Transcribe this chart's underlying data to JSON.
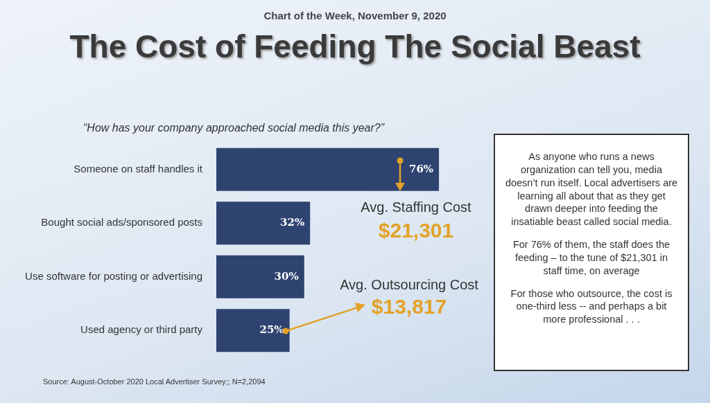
{
  "chart_data": {
    "type": "bar",
    "orientation": "horizontal",
    "title": "The Cost of Feeding The Social Beast",
    "subtitle": "Chart of the Week, November 9, 2020",
    "categories": [
      "Someone on staff handles it",
      "Bought social ads/sponsored posts",
      "Use software for posting or advertising",
      "Used agency or third party"
    ],
    "values": [
      76,
      32,
      30,
      25
    ],
    "value_labels": [
      "76%",
      "32%",
      "30%",
      "25%"
    ],
    "color": "#2e4370",
    "legend": false,
    "tick_labels": "y",
    "annotations": [
      "“How has your company approached social media this year?”",
      "Avg. Staffing Cost",
      "$21,301",
      "Avg. Outsourcing Cost",
      "$13,817",
      "As anyone who runs a news organization can tell you, media doesn’t run itself.  Local advertisers are learning all about that as they get drawn deeper into feeding the insatiable beast called social media.",
      "For 76% of them, the staff does the feeding – to the tune of $21,301 in staff time, on average",
      "For those who outsource, the cost is one-third less -- and perhaps a bit more professional . . .",
      "Source:  August-October 2020 Local Advertiser Survey;; N=2,2094"
    ]
  }
}
